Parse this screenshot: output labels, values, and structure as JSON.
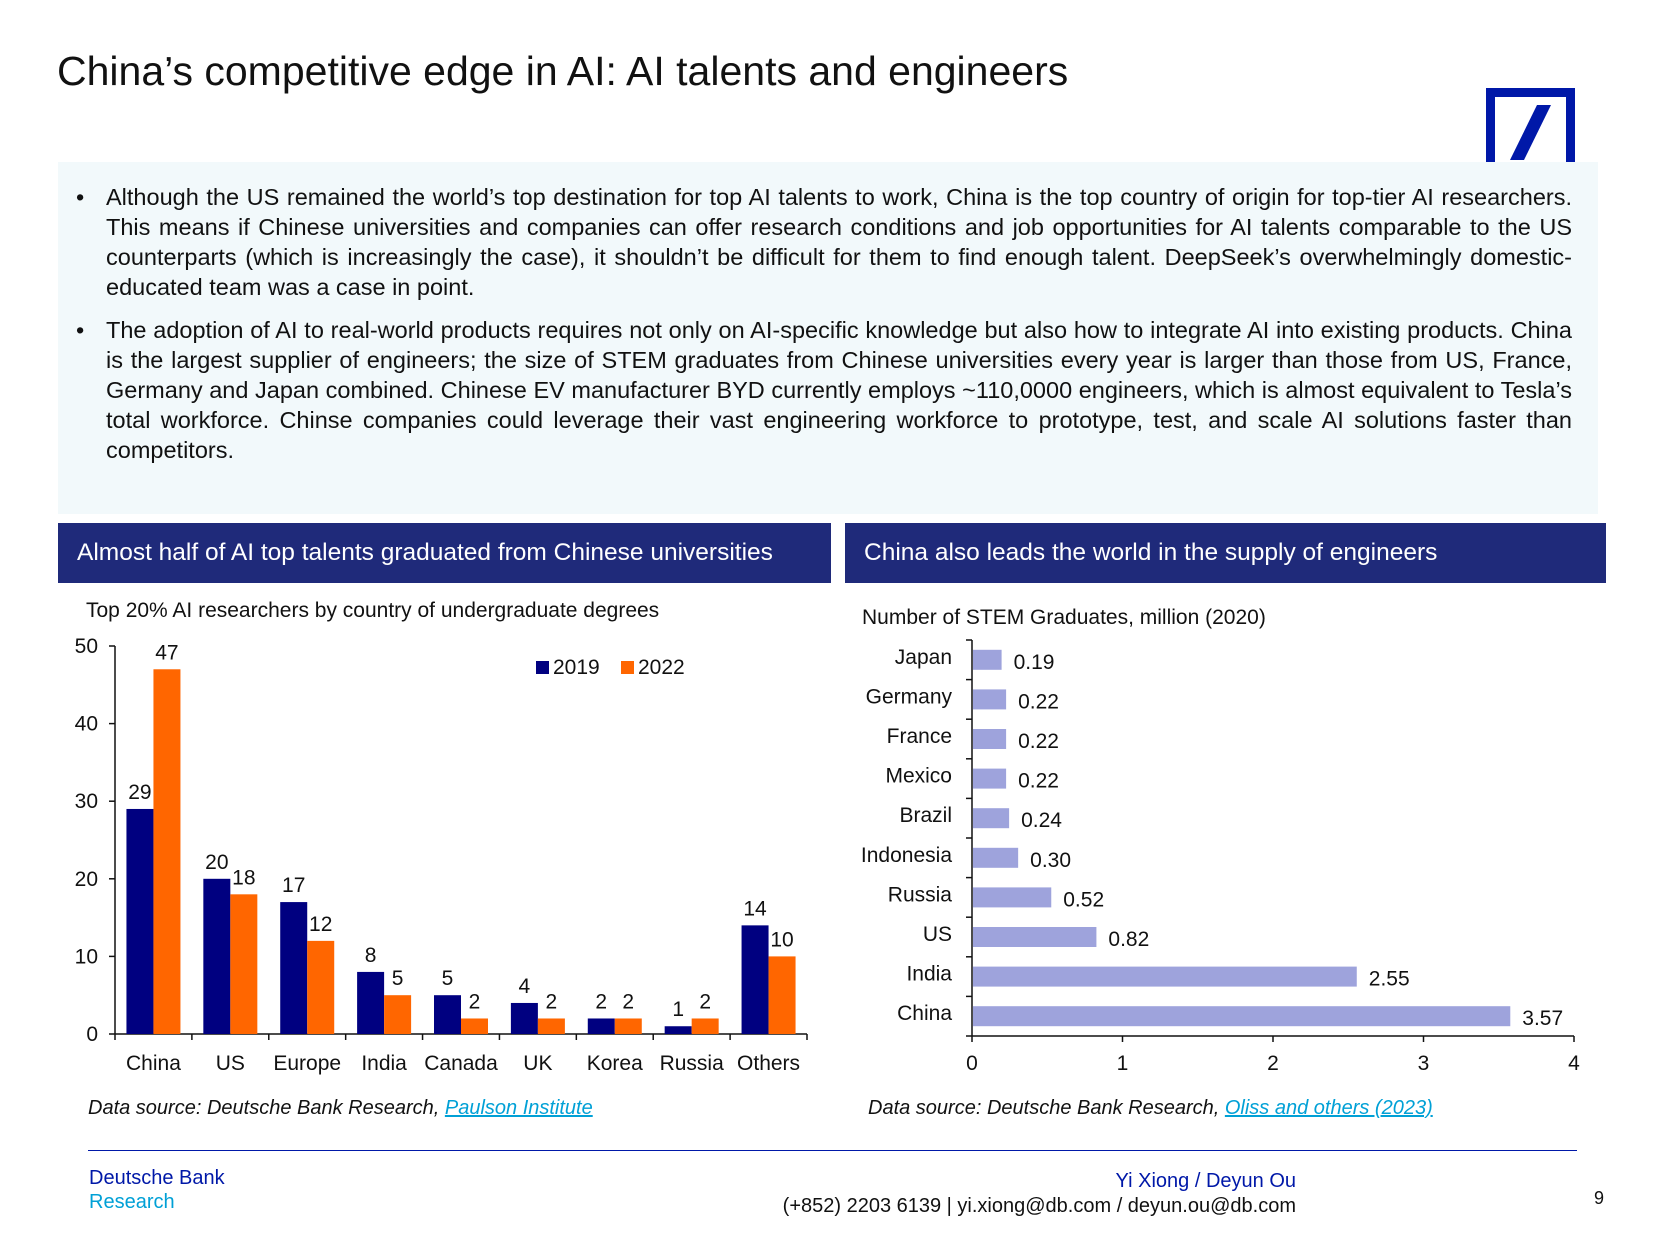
{
  "title": "China’s competitive edge in AI: AI talents and engineers",
  "colors": {
    "navy": "#000080",
    "orange": "#ff6600",
    "lavender": "#9ea3dc",
    "header_bg": "#1f2a7a",
    "brand_blue": "#0018a8",
    "link": "#00a0d6"
  },
  "bullets": [
    "Although the US remained the world’s top destination for top AI talents to work, China is the top country of origin for top-tier AI researchers. This means if Chinese universities and companies can offer research conditions and job opportunities for AI talents comparable to the US counterparts (which is increasingly the case), it shouldn’t be difficult for them to find enough talent. DeepSeek’s overwhelmingly domestic-educated team was a case in point.",
    "The adoption of AI to real-world products requires not only on AI-specific knowledge but also how to integrate AI into existing products. China is the largest supplier of engineers; the size of STEM graduates from Chinese universities every year is larger than those from US, France, Germany and Japan combined. Chinese EV manufacturer BYD currently employs ~110,0000 engineers, which is almost equivalent to Tesla’s total workforce. Chinse companies could leverage their vast engineering workforce to prototype, test, and scale AI solutions faster than competitors."
  ],
  "left_panel": {
    "header": "Almost half of AI top talents graduated from Chinese universities",
    "source_prefix": "Data source: Deutsche Bank Research, ",
    "source_link": "Paulson Institute"
  },
  "right_panel": {
    "header": "China also leads the world in the supply of engineers",
    "source_prefix": "Data source: Deutsche Bank Research, ",
    "source_link": "Oliss and others (2023)"
  },
  "chart_data": [
    {
      "type": "bar",
      "title": "Top 20% AI researchers by country of undergraduate degrees",
      "categories": [
        "China",
        "US",
        "Europe",
        "India",
        "Canada",
        "UK",
        "Korea",
        "Russia",
        "Others"
      ],
      "series": [
        {
          "name": "2019",
          "values": [
            29,
            20,
            17,
            8,
            5,
            4,
            2,
            1,
            14
          ]
        },
        {
          "name": "2022",
          "values": [
            47,
            18,
            12,
            5,
            2,
            2,
            2,
            2,
            10
          ]
        }
      ],
      "ylim": [
        0,
        50
      ],
      "yticks": [
        0,
        10,
        20,
        30,
        40,
        50
      ],
      "xlabel": "",
      "ylabel": "",
      "legend": "top-right"
    },
    {
      "type": "bar",
      "orientation": "horizontal",
      "title": "Number of STEM Graduates, million (2020)",
      "categories": [
        "Japan",
        "Germany",
        "France",
        "Mexico",
        "Brazil",
        "Indonesia",
        "Russia",
        "US",
        "India",
        "China"
      ],
      "values": [
        0.19,
        0.22,
        0.22,
        0.22,
        0.24,
        0.3,
        0.52,
        0.82,
        2.55,
        3.57
      ],
      "labels": [
        "0.19",
        "0.22",
        "0.22",
        "0.22",
        "0.24",
        "0.30",
        "0.52",
        "0.82",
        "2.55",
        "3.57"
      ],
      "xlim": [
        0,
        4
      ],
      "xticks": [
        0,
        1,
        2,
        3,
        4
      ],
      "xlabel": "",
      "ylabel": ""
    }
  ],
  "footer": {
    "brand_line1": "Deutsche Bank",
    "brand_line2": "Research",
    "authors": "Yi Xiong / Deyun Ou",
    "contact": "(+852) 2203 6139 | yi.xiong@db.com / deyun.ou@db.com",
    "page": "9"
  }
}
